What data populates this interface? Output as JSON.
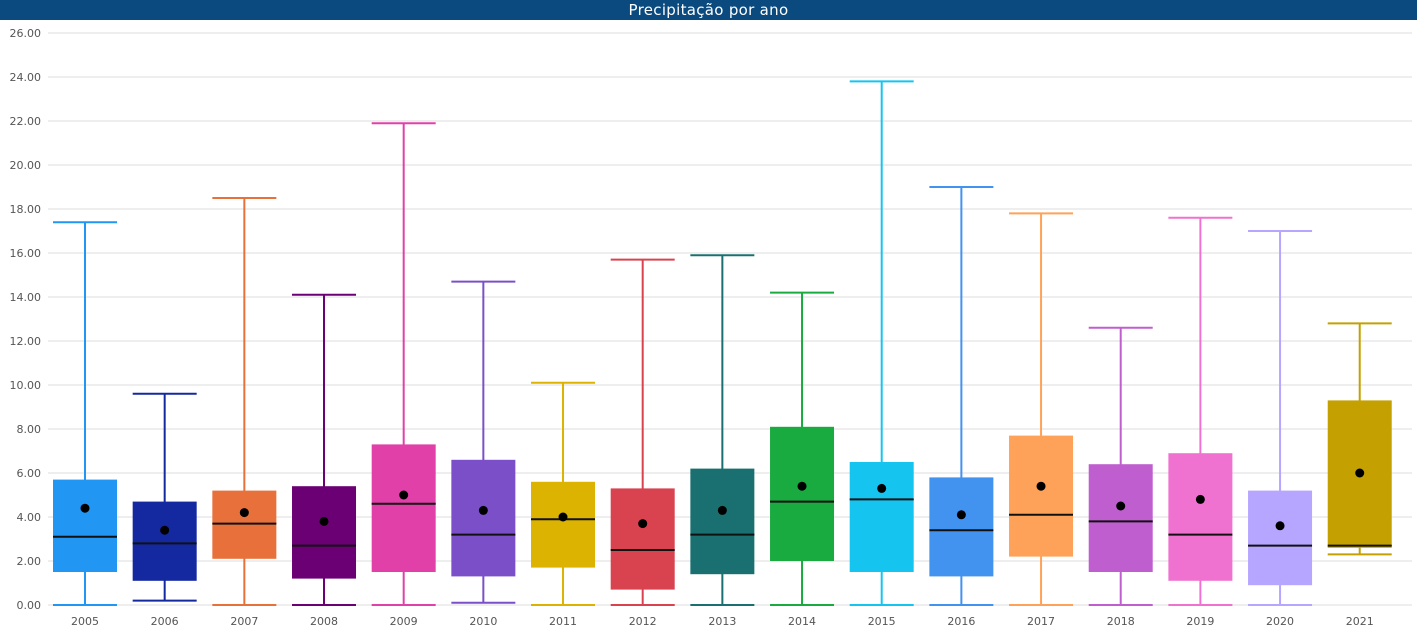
{
  "chart_data": {
    "type": "boxplot",
    "title": "Precipitação por ano",
    "xlabel": "",
    "ylabel": "",
    "ylim": [
      0,
      26
    ],
    "yticks": [
      "0.00",
      "2.00",
      "4.00",
      "6.00",
      "8.00",
      "10.00",
      "12.00",
      "14.00",
      "16.00",
      "18.00",
      "20.00",
      "22.00",
      "24.00",
      "26.00"
    ],
    "grid": true,
    "categories": [
      "2005",
      "2006",
      "2007",
      "2008",
      "2009",
      "2010",
      "2011",
      "2012",
      "2013",
      "2014",
      "2015",
      "2016",
      "2017",
      "2018",
      "2019",
      "2020",
      "2021"
    ],
    "boxes": [
      {
        "min": 0.0,
        "q1": 1.5,
        "median": 3.1,
        "q3": 5.7,
        "max": 17.4,
        "mean": 4.4,
        "color": "#2196f3"
      },
      {
        "min": 0.2,
        "q1": 1.1,
        "median": 2.8,
        "q3": 4.7,
        "max": 9.6,
        "mean": 3.4,
        "color": "#1428a0"
      },
      {
        "min": 0.0,
        "q1": 2.1,
        "median": 3.7,
        "q3": 5.2,
        "max": 18.5,
        "mean": 4.2,
        "color": "#e8703a"
      },
      {
        "min": 0.0,
        "q1": 1.2,
        "median": 2.7,
        "q3": 5.4,
        "max": 14.1,
        "mean": 3.8,
        "color": "#6b0075"
      },
      {
        "min": 0.0,
        "q1": 1.5,
        "median": 4.6,
        "q3": 7.3,
        "max": 21.9,
        "mean": 5.0,
        "color": "#e040a8"
      },
      {
        "min": 0.1,
        "q1": 1.3,
        "median": 3.2,
        "q3": 6.6,
        "max": 14.7,
        "mean": 4.3,
        "color": "#7b4fc8"
      },
      {
        "min": 0.0,
        "q1": 1.7,
        "median": 3.9,
        "q3": 5.6,
        "max": 10.1,
        "mean": 4.0,
        "color": "#dbb300"
      },
      {
        "min": 0.0,
        "q1": 0.7,
        "median": 2.5,
        "q3": 5.3,
        "max": 15.7,
        "mean": 3.7,
        "color": "#d9434f"
      },
      {
        "min": 0.0,
        "q1": 1.4,
        "median": 3.2,
        "q3": 6.2,
        "max": 15.9,
        "mean": 4.3,
        "color": "#1a7070"
      },
      {
        "min": 0.0,
        "q1": 2.0,
        "median": 4.7,
        "q3": 8.1,
        "max": 14.2,
        "mean": 5.4,
        "color": "#1aab40"
      },
      {
        "min": 0.0,
        "q1": 1.5,
        "median": 4.8,
        "q3": 6.5,
        "max": 23.8,
        "mean": 5.3,
        "color": "#15c5f0"
      },
      {
        "min": 0.0,
        "q1": 1.3,
        "median": 3.4,
        "q3": 5.8,
        "max": 19.0,
        "mean": 4.1,
        "color": "#4292f0"
      },
      {
        "min": 0.0,
        "q1": 2.2,
        "median": 4.1,
        "q3": 7.7,
        "max": 17.8,
        "mean": 5.4,
        "color": "#ffa259"
      },
      {
        "min": 0.0,
        "q1": 1.5,
        "median": 3.8,
        "q3": 6.4,
        "max": 12.6,
        "mean": 4.5,
        "color": "#bf5fcf"
      },
      {
        "min": 0.0,
        "q1": 1.1,
        "median": 3.2,
        "q3": 6.9,
        "max": 17.6,
        "mean": 4.8,
        "color": "#f072d0"
      },
      {
        "min": 0.0,
        "q1": 0.9,
        "median": 2.7,
        "q3": 5.2,
        "max": 17.0,
        "mean": 3.6,
        "color": "#b7a6ff"
      },
      {
        "min": 2.3,
        "q1": 2.6,
        "median": 2.7,
        "q3": 9.3,
        "max": 12.8,
        "mean": 6.0,
        "color": "#c4a100"
      }
    ]
  }
}
